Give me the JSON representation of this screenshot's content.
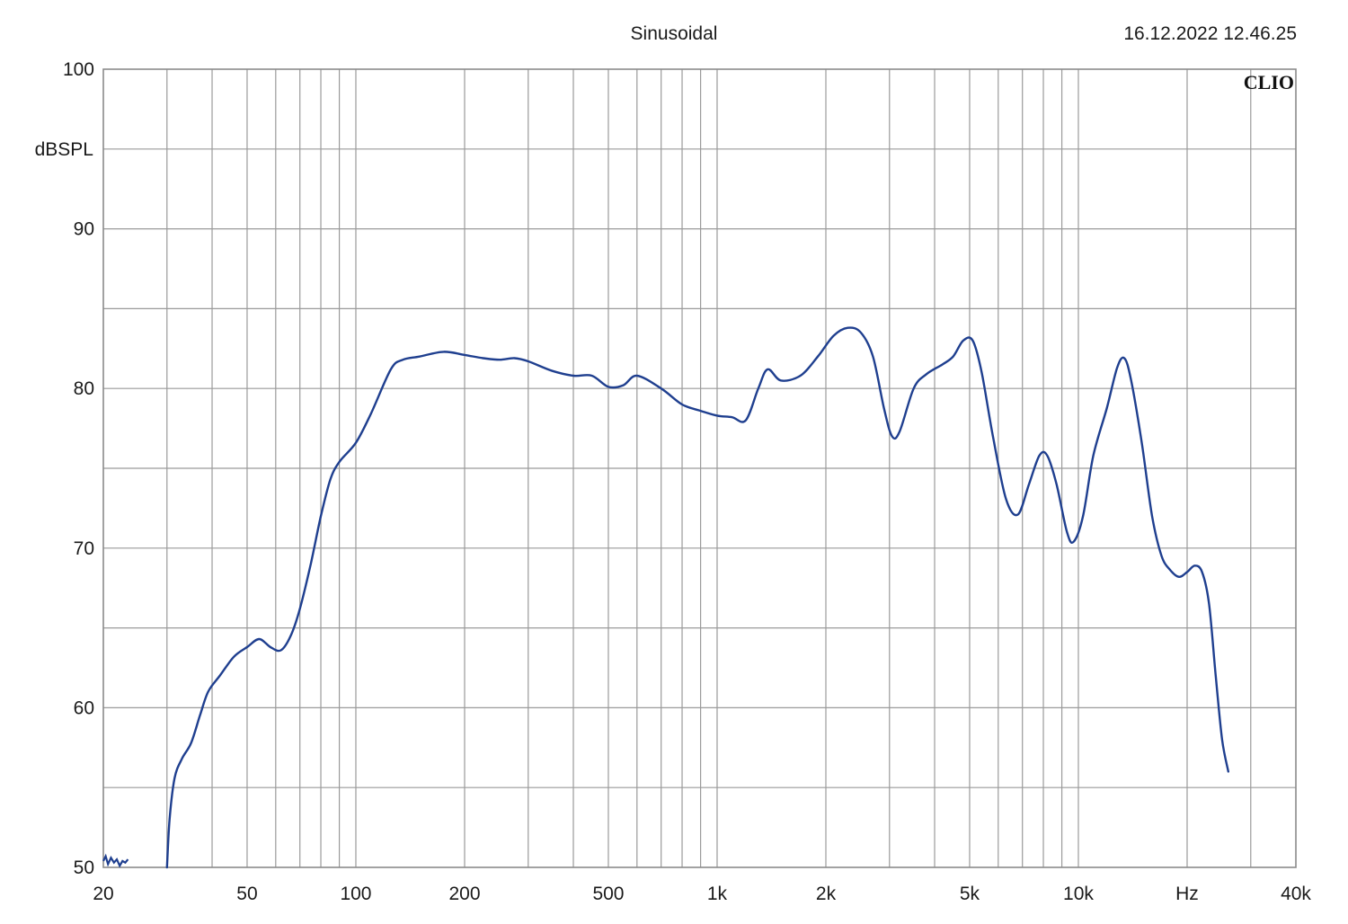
{
  "header": {
    "title": "Sinusoidal",
    "timestamp": "16.12.2022 12.46.25",
    "brand": "CLIO"
  },
  "chart_data": {
    "type": "line",
    "title": "Sinusoidal",
    "xlabel": "Hz",
    "ylabel": "dBSPL",
    "x_scale": "log",
    "xlim": [
      20,
      40000
    ],
    "ylim": [
      50,
      100
    ],
    "grid": true,
    "y_ticks": [
      {
        "value": 100,
        "label": "100"
      },
      {
        "value": 90,
        "label": "90"
      },
      {
        "value": 80,
        "label": "80"
      },
      {
        "value": 70,
        "label": "70"
      },
      {
        "value": 60,
        "label": "60"
      },
      {
        "value": 50,
        "label": "50"
      }
    ],
    "x_ticks": [
      {
        "value": 20,
        "label": "20"
      },
      {
        "value": 50,
        "label": "50"
      },
      {
        "value": 100,
        "label": "100"
      },
      {
        "value": 200,
        "label": "200"
      },
      {
        "value": 500,
        "label": "500"
      },
      {
        "value": 1000,
        "label": "1k"
      },
      {
        "value": 2000,
        "label": "2k"
      },
      {
        "value": 5000,
        "label": "5k"
      },
      {
        "value": 10000,
        "label": "10k"
      },
      {
        "value": 20000,
        "label": "Hz"
      },
      {
        "value": 40000,
        "label": "40k"
      }
    ],
    "color": "#1f3f8f",
    "noise_points": [
      [
        20,
        50.4
      ],
      [
        20.3,
        50.7
      ],
      [
        20.6,
        50.2
      ],
      [
        21.0,
        50.6
      ],
      [
        21.4,
        50.3
      ],
      [
        21.8,
        50.5
      ],
      [
        22.2,
        50.1
      ],
      [
        22.6,
        50.4
      ],
      [
        23.0,
        50.3
      ],
      [
        23.4,
        50.5
      ]
    ],
    "points": [
      [
        30,
        50
      ],
      [
        30.5,
        53
      ],
      [
        31.5,
        55.6
      ],
      [
        33,
        56.8
      ],
      [
        35,
        57.8
      ],
      [
        37,
        59.5
      ],
      [
        39,
        61.0
      ],
      [
        42,
        62.0
      ],
      [
        46,
        63.2
      ],
      [
        50,
        63.8
      ],
      [
        54,
        64.3
      ],
      [
        58,
        63.8
      ],
      [
        62,
        63.6
      ],
      [
        66,
        64.5
      ],
      [
        70,
        66.2
      ],
      [
        75,
        69.0
      ],
      [
        80,
        72.0
      ],
      [
        85,
        74.3
      ],
      [
        90,
        75.4
      ],
      [
        100,
        76.6
      ],
      [
        110,
        78.4
      ],
      [
        125,
        81.2
      ],
      [
        135,
        81.8
      ],
      [
        150,
        82.0
      ],
      [
        175,
        82.3
      ],
      [
        200,
        82.1
      ],
      [
        225,
        81.9
      ],
      [
        250,
        81.8
      ],
      [
        275,
        81.9
      ],
      [
        300,
        81.7
      ],
      [
        350,
        81.1
      ],
      [
        400,
        80.8
      ],
      [
        450,
        80.8
      ],
      [
        500,
        80.1
      ],
      [
        550,
        80.2
      ],
      [
        600,
        80.8
      ],
      [
        700,
        80.0
      ],
      [
        800,
        79.0
      ],
      [
        900,
        78.6
      ],
      [
        1000,
        78.3
      ],
      [
        1100,
        78.2
      ],
      [
        1200,
        78.0
      ],
      [
        1300,
        80.0
      ],
      [
        1380,
        81.2
      ],
      [
        1500,
        80.5
      ],
      [
        1700,
        80.8
      ],
      [
        1900,
        82.0
      ],
      [
        2100,
        83.3
      ],
      [
        2300,
        83.8
      ],
      [
        2500,
        83.5
      ],
      [
        2700,
        82.0
      ],
      [
        2900,
        78.7
      ],
      [
        3050,
        77.0
      ],
      [
        3200,
        77.3
      ],
      [
        3500,
        80.0
      ],
      [
        3800,
        80.9
      ],
      [
        4200,
        81.5
      ],
      [
        4500,
        82.0
      ],
      [
        4800,
        83.0
      ],
      [
        5100,
        83.0
      ],
      [
        5400,
        81.0
      ],
      [
        5800,
        77.0
      ],
      [
        6300,
        73.1
      ],
      [
        6800,
        72.1
      ],
      [
        7300,
        74.0
      ],
      [
        7800,
        75.8
      ],
      [
        8200,
        75.8
      ],
      [
        8700,
        74.0
      ],
      [
        9300,
        71.0
      ],
      [
        9700,
        70.4
      ],
      [
        10300,
        72.0
      ],
      [
        11000,
        75.8
      ],
      [
        12000,
        78.8
      ],
      [
        12800,
        81.3
      ],
      [
        13400,
        81.9
      ],
      [
        14000,
        80.5
      ],
      [
        15000,
        76.5
      ],
      [
        16000,
        72.0
      ],
      [
        17000,
        69.5
      ],
      [
        18000,
        68.6
      ],
      [
        19000,
        68.2
      ],
      [
        20000,
        68.5
      ],
      [
        21000,
        68.9
      ],
      [
        22000,
        68.5
      ],
      [
        23000,
        66.5
      ],
      [
        24000,
        62.0
      ],
      [
        25000,
        58.0
      ],
      [
        26000,
        56.0
      ]
    ]
  }
}
